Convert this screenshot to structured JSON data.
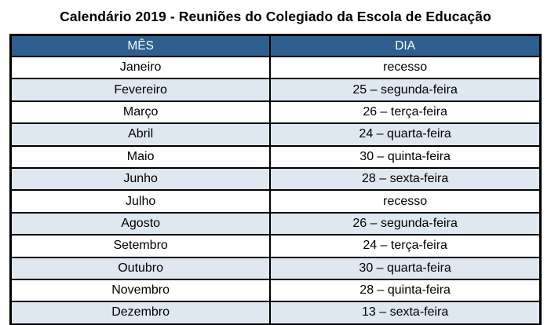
{
  "title": "Calendário 2019 - Reuniões do Colegiado da Escola de Educação",
  "table": {
    "headers": [
      "MÊS",
      "DIA"
    ],
    "rows": [
      {
        "mes": "Janeiro",
        "dia": "recesso"
      },
      {
        "mes": "Fevereiro",
        "dia": "25 – segunda-feira"
      },
      {
        "mes": "Março",
        "dia": "26 – terça-feira"
      },
      {
        "mes": "Abril",
        "dia": "24 – quarta-feira"
      },
      {
        "mes": "Maio",
        "dia": "30 – quinta-feira"
      },
      {
        "mes": "Junho",
        "dia": "28 – sexta-feira"
      },
      {
        "mes": "Julho",
        "dia": "recesso"
      },
      {
        "mes": "Agosto",
        "dia": "26 – segunda-feira"
      },
      {
        "mes": "Setembro",
        "dia": "24 – terça-feira"
      },
      {
        "mes": "Outubro",
        "dia": "30 – quarta-feira"
      },
      {
        "mes": "Novembro",
        "dia": "28 – quinta-feira"
      },
      {
        "mes": "Dezembro",
        "dia": "13 – sexta-feira"
      }
    ]
  },
  "colors": {
    "header_bg": "#2E5F8E",
    "header_text": "#FFFFFF",
    "row_alt_bg": "#DFE7F1",
    "border": "#000000",
    "title_text": "#000000"
  }
}
